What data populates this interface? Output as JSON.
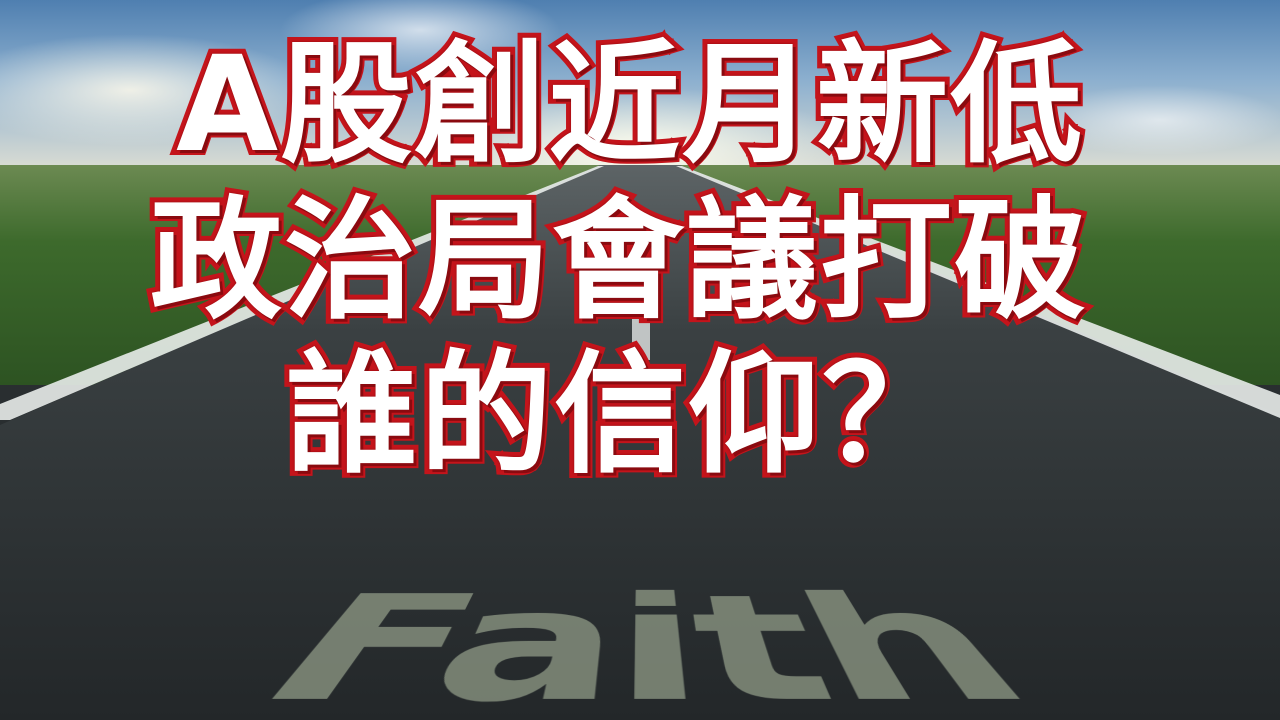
{
  "headline": {
    "line1": "A股創近月新低",
    "line2": "政治局會議打破",
    "line3": "誰的信仰？"
  },
  "road_text": "Faith",
  "colors": {
    "text_fill": "#ffffff",
    "text_outline": "#c4141b",
    "road": "#2c3133",
    "grass": "#3d6a2c",
    "sky": "#8db0cf"
  }
}
